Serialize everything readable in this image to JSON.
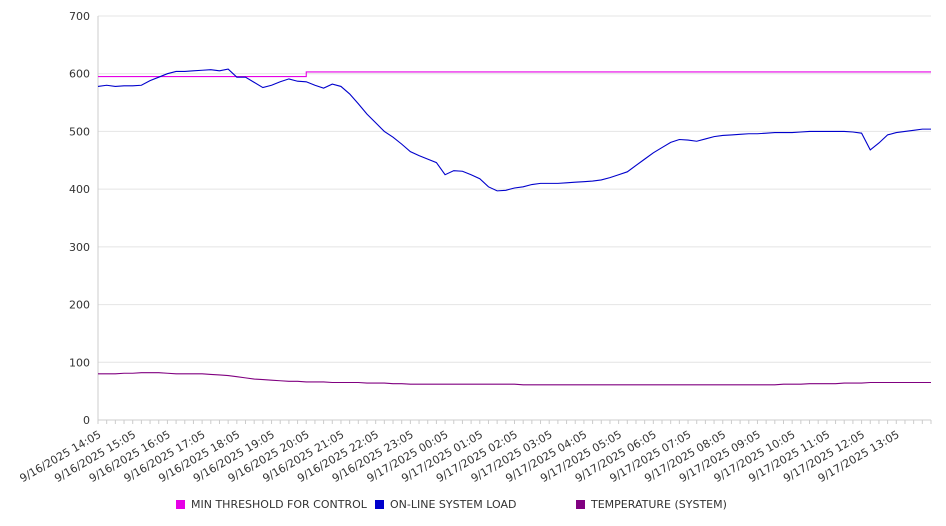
{
  "chart_data": {
    "type": "line",
    "title": "",
    "xlabel": "",
    "ylabel": "",
    "ylim": [
      0,
      700
    ],
    "yticks": [
      0,
      100,
      200,
      300,
      400,
      500,
      600,
      700
    ],
    "grid": true,
    "legend_position": "bottom",
    "x_tick_labels": [
      "9/16/2025 14:05",
      "9/16/2025 15:05",
      "9/16/2025 16:05",
      "9/16/2025 17:05",
      "9/16/2025 18:05",
      "9/16/2025 19:05",
      "9/16/2025 20:05",
      "9/16/2025 21:05",
      "9/16/2025 22:05",
      "9/16/2025 23:05",
      "9/17/2025 00:05",
      "9/17/2025 01:05",
      "9/17/2025 02:05",
      "9/17/2025 03:05",
      "9/17/2025 04:05",
      "9/17/2025 05:05",
      "9/17/2025 06:05",
      "9/17/2025 07:05",
      "9/17/2025 08:05",
      "9/17/2025 09:05",
      "9/17/2025 10:05",
      "9/17/2025 11:05",
      "9/17/2025 12:05",
      "9/17/2025 13:05"
    ],
    "x": [
      "9/16/2025 14:05",
      "9/16/2025 14:20",
      "9/16/2025 14:35",
      "9/16/2025 14:50",
      "9/16/2025 15:05",
      "9/16/2025 15:20",
      "9/16/2025 15:35",
      "9/16/2025 15:50",
      "9/16/2025 16:05",
      "9/16/2025 16:20",
      "9/16/2025 16:35",
      "9/16/2025 16:50",
      "9/16/2025 17:05",
      "9/16/2025 17:20",
      "9/16/2025 17:35",
      "9/16/2025 17:50",
      "9/16/2025 18:05",
      "9/16/2025 18:20",
      "9/16/2025 18:35",
      "9/16/2025 18:50",
      "9/16/2025 19:05",
      "9/16/2025 19:20",
      "9/16/2025 19:35",
      "9/16/2025 19:50",
      "9/16/2025 20:05",
      "9/16/2025 20:20",
      "9/16/2025 20:35",
      "9/16/2025 20:50",
      "9/16/2025 21:05",
      "9/16/2025 21:20",
      "9/16/2025 21:35",
      "9/16/2025 21:50",
      "9/16/2025 22:05",
      "9/16/2025 22:20",
      "9/16/2025 22:35",
      "9/16/2025 22:50",
      "9/16/2025 23:05",
      "9/16/2025 23:20",
      "9/16/2025 23:35",
      "9/16/2025 23:50",
      "9/17/2025 00:05",
      "9/17/2025 00:20",
      "9/17/2025 00:35",
      "9/17/2025 00:50",
      "9/17/2025 01:05",
      "9/17/2025 01:20",
      "9/17/2025 01:35",
      "9/17/2025 01:50",
      "9/17/2025 02:05",
      "9/17/2025 02:20",
      "9/17/2025 02:35",
      "9/17/2025 02:50",
      "9/17/2025 03:05",
      "9/17/2025 03:20",
      "9/17/2025 03:35",
      "9/17/2025 03:50",
      "9/17/2025 04:05",
      "9/17/2025 04:20",
      "9/17/2025 04:35",
      "9/17/2025 04:50",
      "9/17/2025 05:05",
      "9/17/2025 05:20",
      "9/17/2025 05:35",
      "9/17/2025 05:50",
      "9/17/2025 06:05",
      "9/17/2025 06:20",
      "9/17/2025 06:35",
      "9/17/2025 06:50",
      "9/17/2025 07:05",
      "9/17/2025 07:20",
      "9/17/2025 07:35",
      "9/17/2025 07:50",
      "9/17/2025 08:05",
      "9/17/2025 08:20",
      "9/17/2025 08:35",
      "9/17/2025 08:50",
      "9/17/2025 09:05",
      "9/17/2025 09:20",
      "9/17/2025 09:35",
      "9/17/2025 09:50",
      "9/17/2025 10:05",
      "9/17/2025 10:20",
      "9/17/2025 10:35",
      "9/17/2025 10:50",
      "9/17/2025 11:05",
      "9/17/2025 11:20",
      "9/17/2025 11:35",
      "9/17/2025 11:50",
      "9/17/2025 12:05",
      "9/17/2025 12:20",
      "9/17/2025 12:35",
      "9/17/2025 12:50",
      "9/17/2025 13:05",
      "9/17/2025 13:20",
      "9/17/2025 13:35",
      "9/17/2025 13:50",
      "9/17/2025 14:05"
    ],
    "series": [
      {
        "name": "MIN THRESHOLD FOR CONTROL",
        "color": "#e600e6",
        "values": [
          595,
          595,
          595,
          595,
          595,
          595,
          595,
          595,
          595,
          595,
          595,
          595,
          595,
          595,
          595,
          595,
          595,
          595,
          595,
          595,
          595,
          595,
          595,
          595,
          603,
          603,
          603,
          603,
          603,
          603,
          603,
          603,
          603,
          603,
          603,
          603,
          603,
          603,
          603,
          603,
          603,
          603,
          603,
          603,
          603,
          603,
          603,
          603,
          603,
          603,
          603,
          603,
          603,
          603,
          603,
          603,
          603,
          603,
          603,
          603,
          603,
          603,
          603,
          603,
          603,
          603,
          603,
          603,
          603,
          603,
          603,
          603,
          603,
          603,
          603,
          603,
          603,
          603,
          603,
          603,
          603,
          603,
          603,
          603,
          603,
          603,
          603,
          603,
          603,
          603,
          603,
          603,
          603,
          603,
          603,
          603,
          603
        ]
      },
      {
        "name": "ON-LINE SYSTEM LOAD",
        "color": "#0000cc",
        "values": [
          578,
          580,
          578,
          579,
          579,
          580,
          588,
          594,
          600,
          604,
          604,
          605,
          606,
          607,
          605,
          608,
          594,
          594,
          585,
          576,
          580,
          586,
          591,
          587,
          586,
          580,
          575,
          582,
          578,
          565,
          548,
          530,
          515,
          500,
          490,
          478,
          465,
          458,
          452,
          446,
          425,
          432,
          431,
          425,
          418,
          404,
          397,
          398,
          402,
          404,
          408,
          410,
          410,
          410,
          411,
          412,
          413,
          414,
          416,
          420,
          425,
          430,
          441,
          452,
          463,
          472,
          481,
          486,
          485,
          483,
          487,
          491,
          493,
          494,
          495,
          496,
          496,
          497,
          498,
          498,
          498,
          499,
          500,
          500,
          500,
          500,
          500,
          499,
          497,
          468,
          480,
          494,
          498,
          500,
          502,
          504,
          504
        ]
      },
      {
        "name": "TEMPERATURE (SYSTEM)",
        "color": "#800080",
        "values": [
          80,
          80,
          80,
          81,
          81,
          82,
          82,
          82,
          81,
          80,
          80,
          80,
          80,
          79,
          78,
          77,
          75,
          73,
          71,
          70,
          69,
          68,
          67,
          67,
          66,
          66,
          66,
          65,
          65,
          65,
          65,
          64,
          64,
          64,
          63,
          63,
          62,
          62,
          62,
          62,
          62,
          62,
          62,
          62,
          62,
          62,
          62,
          62,
          62,
          61,
          61,
          61,
          61,
          61,
          61,
          61,
          61,
          61,
          61,
          61,
          61,
          61,
          61,
          61,
          61,
          61,
          61,
          61,
          61,
          61,
          61,
          61,
          61,
          61,
          61,
          61,
          61,
          61,
          61,
          62,
          62,
          62,
          63,
          63,
          63,
          63,
          64,
          64,
          64,
          65,
          65,
          65,
          65,
          65,
          65,
          65,
          65
        ]
      }
    ]
  }
}
